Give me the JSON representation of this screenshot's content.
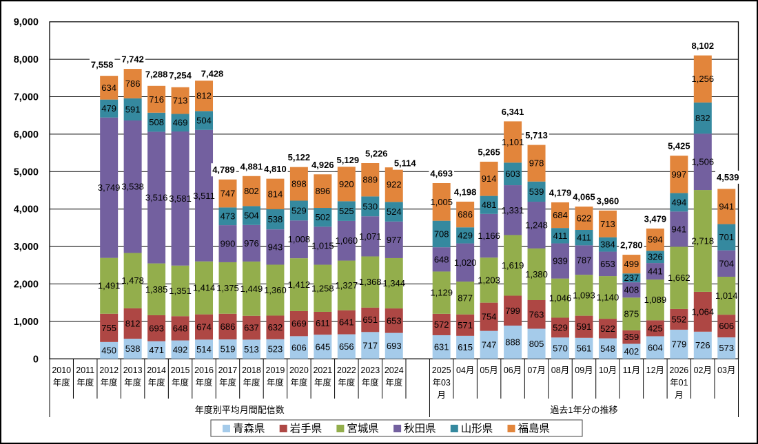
{
  "chart_data": {
    "type": "bar",
    "stacked": true,
    "title": "",
    "xlabel": "",
    "ylabel": "",
    "ylim": [
      0,
      9000
    ],
    "ytick_step": 1000,
    "grid": true,
    "legend_position": "bottom",
    "series": [
      {
        "name": "青森県",
        "color": "#A5CBEA"
      },
      {
        "name": "岩手県",
        "color": "#AE4744"
      },
      {
        "name": "宮城県",
        "color": "#93AE4C"
      },
      {
        "name": "秋田県",
        "color": "#73609F"
      },
      {
        "name": "山形県",
        "color": "#35899F"
      },
      {
        "name": "福島県",
        "color": "#E2853B"
      }
    ],
    "groups": [
      {
        "label": "年度別平均月間配信数",
        "categories": [
          {
            "label": "2010年度",
            "values": null,
            "total": null
          },
          {
            "label": "2011年度",
            "values": null,
            "total": null
          },
          {
            "label": "2012年度",
            "values": [
              450,
              755,
              1491,
              3749,
              479,
              634
            ],
            "total": 7558
          },
          {
            "label": "2013年度",
            "values": [
              538,
              812,
              1478,
              3538,
              591,
              786
            ],
            "total": 7742
          },
          {
            "label": "2014年度",
            "values": [
              471,
              693,
              1385,
              3516,
              508,
              716
            ],
            "total": 7288
          },
          {
            "label": "2015年度",
            "values": [
              492,
              648,
              1351,
              3581,
              469,
              713
            ],
            "total": 7254
          },
          {
            "label": "2016年度",
            "values": [
              514,
              674,
              1414,
              3511,
              504,
              812
            ],
            "total": 7428
          },
          {
            "label": "2017年度",
            "values": [
              519,
              686,
              1375,
              990,
              473,
              747
            ],
            "total": 4789
          },
          {
            "label": "2018年度",
            "values": [
              513,
              637,
              1449,
              976,
              504,
              802
            ],
            "total": 4881
          },
          {
            "label": "2019年度",
            "values": [
              523,
              632,
              1360,
              943,
              538,
              814
            ],
            "total": 4810
          },
          {
            "label": "2020年度",
            "values": [
              606,
              669,
              1412,
              1008,
              529,
              898
            ],
            "total": 5122
          },
          {
            "label": "2021年度",
            "values": [
              645,
              611,
              1258,
              1015,
              502,
              896
            ],
            "total": 4926
          },
          {
            "label": "2022年度",
            "values": [
              656,
              641,
              1327,
              1060,
              525,
              920
            ],
            "total": 5129
          },
          {
            "label": "2023年度",
            "values": [
              717,
              651,
              1368,
              1071,
              530,
              889
            ],
            "total": 5226
          },
          {
            "label": "2024年度",
            "values": [
              693,
              653,
              1344,
              977,
              524,
              922
            ],
            "total": 5114
          }
        ]
      },
      {
        "label": "過去1年分の推移",
        "categories": [
          {
            "label": "2025年03月",
            "values": [
              631,
              572,
              1129,
              648,
              708,
              1005
            ],
            "total": 4693
          },
          {
            "label": "04月",
            "values": [
              615,
              571,
              877,
              1020,
              429,
              686
            ],
            "total": 4198
          },
          {
            "label": "05月",
            "values": [
              747,
              754,
              1203,
              1166,
              481,
              914
            ],
            "total": 5265
          },
          {
            "label": "06月",
            "values": [
              888,
              799,
              1619,
              1331,
              603,
              1101
            ],
            "total": 6341
          },
          {
            "label": "07月",
            "values": [
              805,
              763,
              1380,
              1248,
              539,
              978
            ],
            "total": 5713
          },
          {
            "label": "08月",
            "values": [
              570,
              529,
              1046,
              939,
              411,
              684
            ],
            "total": 4179
          },
          {
            "label": "09月",
            "values": [
              561,
              591,
              1093,
              787,
              411,
              622
            ],
            "total": 4065
          },
          {
            "label": "10月",
            "values": [
              548,
              522,
              1140,
              653,
              384,
              713
            ],
            "total": 3960
          },
          {
            "label": "11月",
            "values": [
              402,
              359,
              875,
              408,
              237,
              499
            ],
            "total": 2780
          },
          {
            "label": "12月",
            "values": [
              604,
              425,
              1089,
              441,
              326,
              594
            ],
            "total": 3479
          },
          {
            "label": "2026年01月",
            "values": [
              779,
              552,
              1662,
              941,
              494,
              997
            ],
            "total": 5425
          },
          {
            "label": "02月",
            "values": [
              726,
              1064,
              2718,
              1506,
              832,
              1256
            ],
            "total": 8102
          },
          {
            "label": "03月",
            "values": [
              573,
              606,
              1014,
              704,
              701,
              941
            ],
            "total": 4539
          }
        ]
      }
    ]
  }
}
